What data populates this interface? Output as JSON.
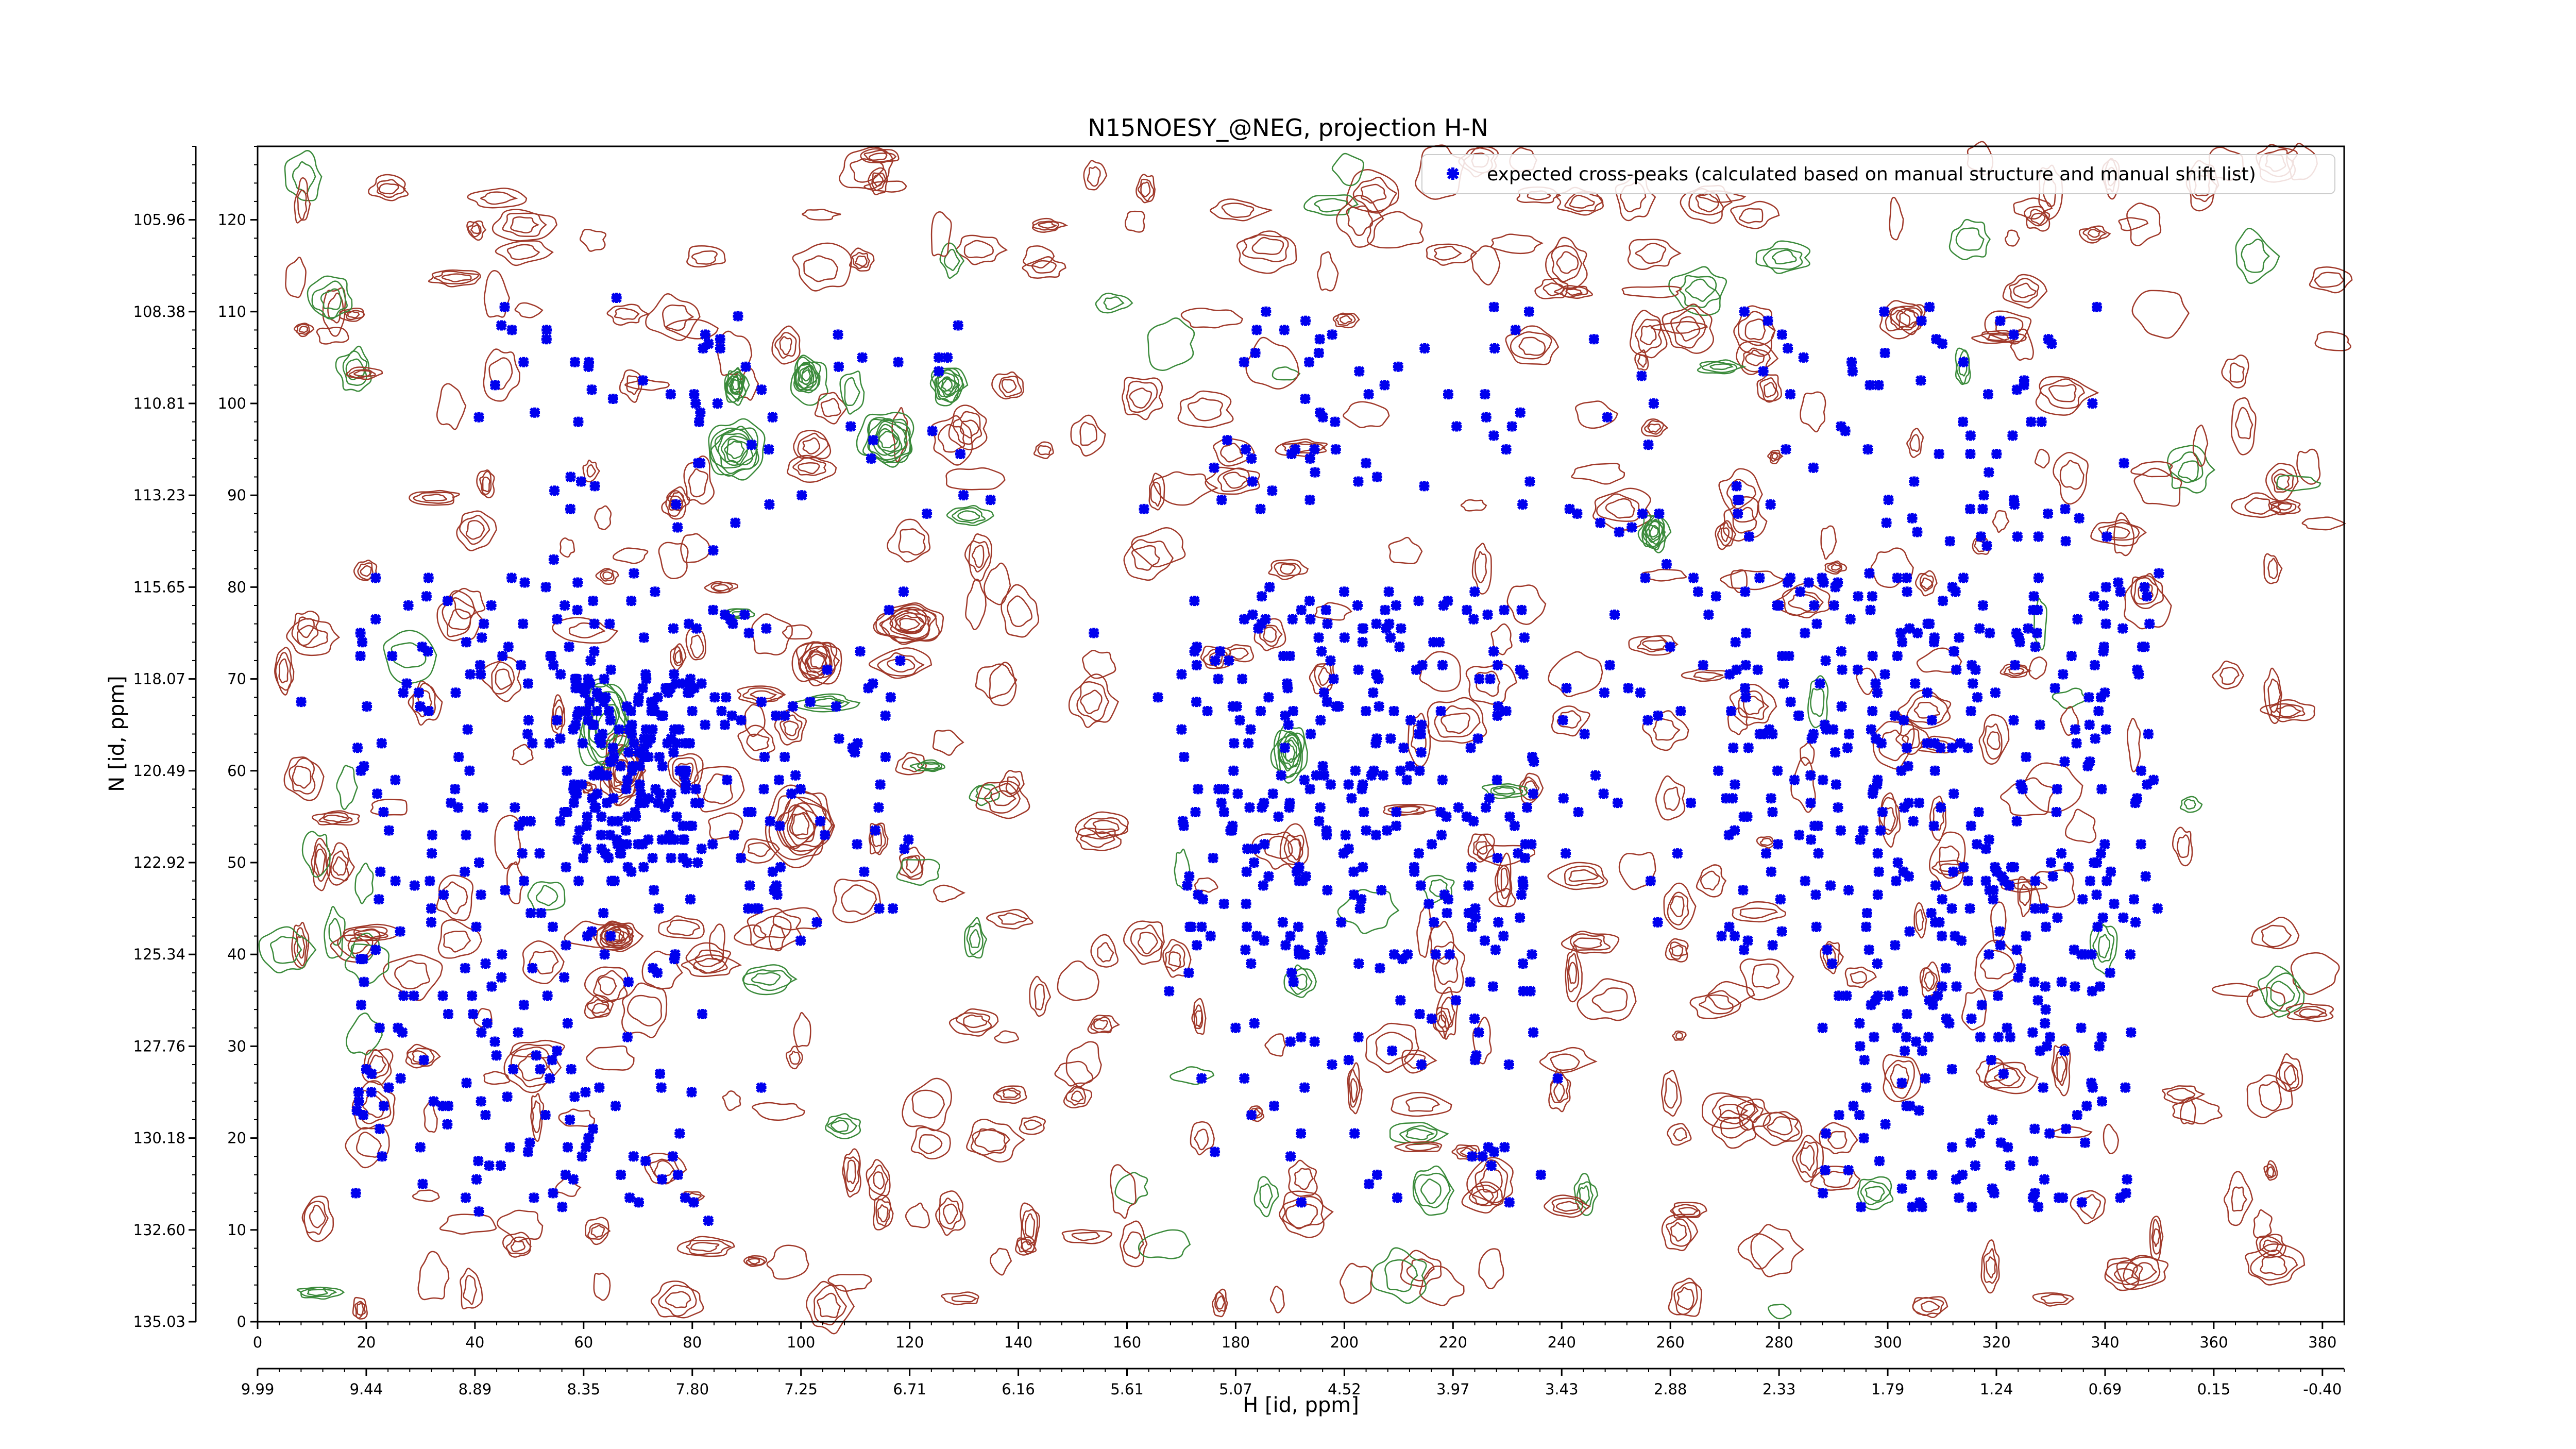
{
  "chart_data": {
    "type": "scatter",
    "title": "N15NOESY_@NEG, projection H-N",
    "xlabel": "H [id, ppm]",
    "ylabel": "N [id, ppm]",
    "xlim": [
      0,
      384
    ],
    "ylim": [
      0,
      128
    ],
    "x_ticks_index": [
      "0",
      "20",
      "40",
      "60",
      "80",
      "100",
      "120",
      "140",
      "160",
      "180",
      "200",
      "220",
      "240",
      "260",
      "280",
      "300",
      "320",
      "340",
      "360",
      "380"
    ],
    "x_ticks_ppm": [
      "9.99",
      "9.44",
      "8.89",
      "8.35",
      "7.80",
      "7.25",
      "6.71",
      "6.16",
      "5.61",
      "5.07",
      "4.52",
      "3.97",
      "3.43",
      "2.88",
      "2.33",
      "1.79",
      "1.24",
      "0.69",
      "0.15",
      "-0.40"
    ],
    "y_ticks_index": [
      "0",
      "10",
      "20",
      "30",
      "40",
      "50",
      "60",
      "70",
      "80",
      "90",
      "100",
      "110",
      "120"
    ],
    "y_ticks_ppm": [
      "135.03",
      "132.60",
      "130.18",
      "127.76",
      "125.34",
      "122.92",
      "120.49",
      "118.07",
      "115.65",
      "113.23",
      "110.81",
      "108.38",
      "105.96"
    ],
    "legend": {
      "position": "top-right",
      "entries": [
        "expected cross-peaks (calculated based on manual structure and manual shift list)"
      ]
    },
    "colors": {
      "peaks": "#0000ee",
      "positive_contours": "#a0392a",
      "negative_contours": "#3a8a3a"
    },
    "series": [
      {
        "name": "expected cross-peaks (calculated based on manual structure and manual shift list)",
        "clusters": [
          {
            "x_range": [
              18,
              82
            ],
            "y_range": [
              12,
              82
            ],
            "count": 260
          },
          {
            "x_range": [
              58,
              80
            ],
            "y_range": [
              50,
              72
            ],
            "count": 140
          },
          {
            "x_range": [
              40,
              130
            ],
            "y_range": [
              86,
              112
            ],
            "count": 60
          },
          {
            "x_range": [
              80,
              120
            ],
            "y_range": [
              40,
              78
            ],
            "count": 70
          },
          {
            "x_range": [
              170,
              235
            ],
            "y_range": [
              40,
              80
            ],
            "count": 260
          },
          {
            "x_range": [
              170,
              240
            ],
            "y_range": [
              12,
              40
            ],
            "count": 55
          },
          {
            "x_range": [
              175,
              260
            ],
            "y_range": [
              88,
              112
            ],
            "count": 60
          },
          {
            "x_range": [
              240,
              270
            ],
            "y_range": [
              40,
              90
            ],
            "count": 35
          },
          {
            "x_range": [
              270,
              350
            ],
            "y_range": [
              40,
              82
            ],
            "count": 300
          },
          {
            "x_range": [
              288,
              345
            ],
            "y_range": [
              12,
              40
            ],
            "count": 120
          },
          {
            "x_range": [
              270,
              345
            ],
            "y_range": [
              84,
              112
            ],
            "count": 70
          },
          {
            "x_range": [
              0,
              170
            ],
            "y_range": [
              10,
              90
            ],
            "count": 25
          }
        ]
      }
    ],
    "contours": {
      "positive_peaks": [
        {
          "x": 66,
          "y": 42,
          "w": 4,
          "h": 1.6
        },
        {
          "x": 103,
          "y": 72,
          "w": 4,
          "h": 2.6
        },
        {
          "x": 120,
          "y": 76,
          "w": 6,
          "h": 2.2
        },
        {
          "x": 100,
          "y": 54,
          "w": 6,
          "h": 4
        },
        {
          "x": 67,
          "y": 60,
          "w": 4,
          "h": 4
        }
      ],
      "negative_peaks": [
        {
          "x": 88,
          "y": 95,
          "w": 5,
          "h": 3
        },
        {
          "x": 116,
          "y": 96,
          "w": 5,
          "h": 3
        },
        {
          "x": 127,
          "y": 102,
          "w": 3,
          "h": 2
        },
        {
          "x": 64,
          "y": 65,
          "w": 5,
          "h": 5
        },
        {
          "x": 88,
          "y": 102,
          "w": 2,
          "h": 2
        },
        {
          "x": 101,
          "y": 103,
          "w": 2.5,
          "h": 2
        },
        {
          "x": 190,
          "y": 62,
          "w": 3,
          "h": 3
        },
        {
          "x": 257,
          "y": 86,
          "w": 2.5,
          "h": 2
        }
      ]
    }
  }
}
